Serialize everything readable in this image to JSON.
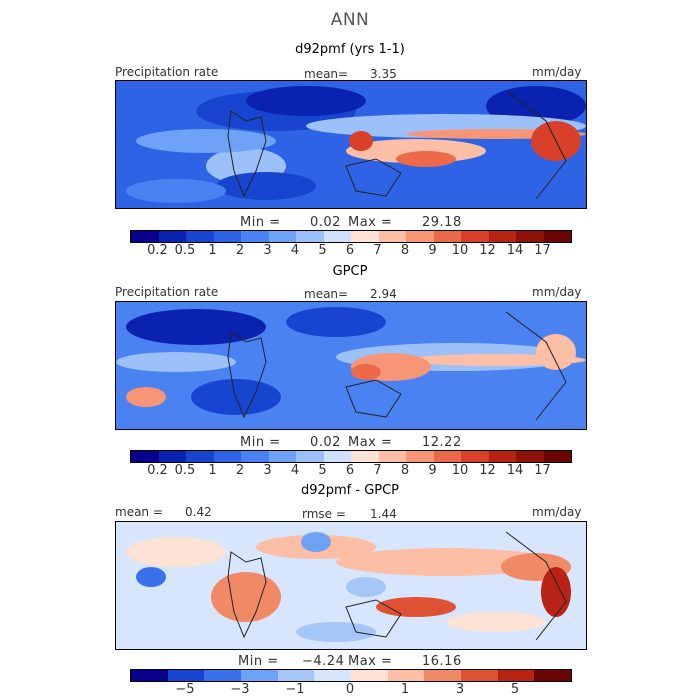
{
  "figure": {
    "title": "ANN"
  },
  "panels": [
    {
      "subtitle": "d92pmf (yrs 1-1)",
      "left_label": "Precipitation rate",
      "center_label": "mean=",
      "center_value": "3.35",
      "right_label": "mm/day",
      "min_label": "Min =",
      "min_value": "0.02",
      "max_label": "Max =",
      "max_value": "29.18",
      "colorbar_ticks": [
        "0.2",
        "0.5",
        "1",
        "2",
        "3",
        "4",
        "5",
        "6",
        "7",
        "8",
        "9",
        "10",
        "12",
        "14",
        "17"
      ]
    },
    {
      "subtitle": "GPCP",
      "left_label": "Precipitation rate",
      "center_label": "mean=",
      "center_value": "2.94",
      "right_label": "mm/day",
      "min_label": "Min =",
      "min_value": "0.02",
      "max_label": "Max =",
      "max_value": "12.22",
      "colorbar_ticks": [
        "0.2",
        "0.5",
        "1",
        "2",
        "3",
        "4",
        "5",
        "6",
        "7",
        "8",
        "9",
        "10",
        "12",
        "14",
        "17"
      ]
    },
    {
      "subtitle": "d92pmf - GPCP",
      "left_label": "mean =",
      "left_value": "0.42",
      "center_label": "rmse =",
      "center_value": "1.44",
      "right_label": "mm/day",
      "min_label": "Min =",
      "min_value": "−4.24",
      "max_label": "Max =",
      "max_value": "16.16",
      "colorbar_ticks": [
        "−5",
        "−3",
        "−1",
        "0",
        "1",
        "3",
        "5"
      ]
    }
  ],
  "colors": {
    "abs_scale": [
      "#08008c",
      "#0a22b0",
      "#1845cf",
      "#2f63e6",
      "#4a82f2",
      "#6ea2f7",
      "#9cc0fa",
      "#cfe0fc",
      "#fde3d5",
      "#fcbfa5",
      "#f79677",
      "#ec6a4a",
      "#d8402a",
      "#b82315",
      "#8f1208",
      "#6a0503"
    ],
    "diff_scale": [
      "#08008c",
      "#1845cf",
      "#3a70ea",
      "#6ea2f7",
      "#a6c6fa",
      "#d7e6fc",
      "#fde3d5",
      "#fcbfa5",
      "#f08a66",
      "#de5233",
      "#b82315",
      "#6a0503"
    ],
    "land_outline": "#222222"
  }
}
